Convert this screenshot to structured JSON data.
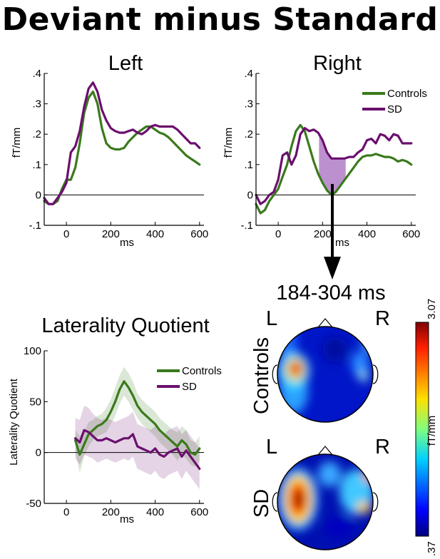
{
  "figure": {
    "title": "Deviant minus Standard",
    "colors": {
      "controls": "#3a7a1c",
      "sd": "#6b0f6e",
      "shade": "#b07cc6",
      "axis": "#000000"
    }
  },
  "chart_data": [
    {
      "type": "line",
      "title": "Left",
      "xlabel": "ms",
      "ylabel": "fT/mm",
      "xlim": [
        -100,
        620
      ],
      "ylim": [
        -0.1,
        0.4
      ],
      "xticks": [
        0,
        200,
        400,
        600
      ],
      "xtick_labels": [
        "0",
        "200",
        "400",
        "600"
      ],
      "yticks": [
        -0.1,
        0,
        0.1,
        0.2,
        0.3,
        0.4
      ],
      "ytick_labels": [
        "-.1",
        "0",
        ".1",
        ".2",
        ".3",
        ".4"
      ],
      "series": [
        {
          "name": "Controls",
          "color": "#3a7a1c",
          "x": [
            -100,
            -80,
            -60,
            -40,
            -20,
            0,
            20,
            40,
            60,
            80,
            100,
            120,
            140,
            160,
            180,
            200,
            220,
            240,
            260,
            280,
            300,
            320,
            340,
            360,
            380,
            400,
            420,
            440,
            460,
            480,
            500,
            520,
            540,
            560,
            580,
            600
          ],
          "y": [
            -0.02,
            -0.03,
            -0.03,
            -0.02,
            0.02,
            0.05,
            0.05,
            0.09,
            0.17,
            0.27,
            0.32,
            0.34,
            0.3,
            0.22,
            0.17,
            0.155,
            0.15,
            0.15,
            0.155,
            0.175,
            0.19,
            0.205,
            0.215,
            0.225,
            0.225,
            0.215,
            0.205,
            0.2,
            0.19,
            0.175,
            0.16,
            0.145,
            0.13,
            0.12,
            0.11,
            0.1
          ]
        },
        {
          "name": "SD",
          "color": "#6b0f6e",
          "x": [
            -100,
            -80,
            -60,
            -40,
            -20,
            0,
            20,
            40,
            60,
            80,
            100,
            120,
            140,
            160,
            180,
            200,
            220,
            240,
            260,
            280,
            300,
            320,
            340,
            360,
            380,
            400,
            420,
            440,
            460,
            480,
            500,
            520,
            540,
            560,
            580,
            600
          ],
          "y": [
            -0.01,
            -0.03,
            -0.03,
            -0.01,
            0.01,
            0.04,
            0.14,
            0.16,
            0.21,
            0.29,
            0.35,
            0.37,
            0.34,
            0.28,
            0.245,
            0.22,
            0.21,
            0.205,
            0.205,
            0.21,
            0.215,
            0.205,
            0.2,
            0.21,
            0.225,
            0.23,
            0.225,
            0.225,
            0.225,
            0.225,
            0.215,
            0.2,
            0.185,
            0.17,
            0.17,
            0.155
          ]
        }
      ]
    },
    {
      "type": "line",
      "title": "Right",
      "xlabel": "ms",
      "ylabel": "fT/mm",
      "xlim": [
        -100,
        620
      ],
      "ylim": [
        -0.1,
        0.4
      ],
      "xticks": [
        0,
        200,
        400,
        600
      ],
      "xtick_labels": [
        "0",
        "200",
        "400",
        "600"
      ],
      "yticks": [
        -0.1,
        0,
        0.1,
        0.2,
        0.3,
        0.4
      ],
      "ytick_labels": [
        "-.1",
        "0",
        ".1",
        ".2",
        ".3",
        ".4"
      ],
      "shaded_window": [
        184,
        304
      ],
      "legend": "top-right",
      "series": [
        {
          "name": "Controls",
          "color": "#3a7a1c",
          "x": [
            -100,
            -80,
            -60,
            -40,
            -20,
            0,
            20,
            40,
            60,
            80,
            100,
            120,
            140,
            160,
            180,
            200,
            220,
            240,
            260,
            280,
            300,
            320,
            340,
            360,
            380,
            400,
            420,
            440,
            460,
            480,
            500,
            520,
            540,
            560,
            580,
            600
          ],
          "y": [
            -0.03,
            -0.06,
            -0.05,
            -0.02,
            0.0,
            0.02,
            0.06,
            0.1,
            0.16,
            0.21,
            0.23,
            0.21,
            0.16,
            0.11,
            0.07,
            0.04,
            0.015,
            0.0,
            0.01,
            0.03,
            0.05,
            0.07,
            0.09,
            0.11,
            0.125,
            0.13,
            0.13,
            0.135,
            0.13,
            0.125,
            0.125,
            0.12,
            0.11,
            0.115,
            0.11,
            0.1
          ]
        },
        {
          "name": "SD",
          "color": "#6b0f6e",
          "x": [
            -100,
            -80,
            -60,
            -40,
            -20,
            0,
            20,
            40,
            60,
            80,
            100,
            120,
            140,
            160,
            180,
            200,
            220,
            240,
            260,
            280,
            300,
            320,
            340,
            360,
            380,
            400,
            420,
            440,
            460,
            480,
            500,
            520,
            540,
            560,
            580,
            600
          ],
          "y": [
            0.0,
            -0.03,
            -0.02,
            0.0,
            0.01,
            0.05,
            0.13,
            0.14,
            0.1,
            0.13,
            0.2,
            0.22,
            0.21,
            0.215,
            0.205,
            0.18,
            0.14,
            0.12,
            0.12,
            0.12,
            0.12,
            0.125,
            0.125,
            0.14,
            0.15,
            0.18,
            0.185,
            0.17,
            0.2,
            0.195,
            0.18,
            0.2,
            0.195,
            0.17,
            0.17,
            0.17
          ]
        }
      ]
    },
    {
      "type": "line",
      "title": "Laterality Quotient",
      "xlabel": "ms",
      "ylabel": "Laterality Quotient",
      "xlim": [
        -100,
        620
      ],
      "ylim": [
        -50,
        100
      ],
      "xticks": [
        0,
        200,
        400,
        600
      ],
      "xtick_labels": [
        "0",
        "200",
        "400",
        "600"
      ],
      "yticks": [
        -50,
        0,
        50,
        100
      ],
      "ytick_labels": [
        "-50",
        "0",
        "50",
        "100"
      ],
      "legend": "top-right",
      "series": [
        {
          "name": "Controls",
          "color": "#3a7a1c",
          "x": [
            40,
            60,
            80,
            100,
            120,
            140,
            160,
            180,
            200,
            220,
            240,
            260,
            280,
            300,
            320,
            340,
            360,
            380,
            400,
            420,
            440,
            460,
            480,
            500,
            520,
            540,
            560,
            580,
            600
          ],
          "y": [
            12,
            -2,
            8,
            18,
            22,
            26,
            28,
            32,
            40,
            50,
            62,
            70,
            64,
            56,
            46,
            40,
            36,
            32,
            28,
            22,
            18,
            14,
            10,
            6,
            12,
            8,
            0,
            -2,
            4
          ],
          "band_half_width": [
            10,
            18,
            12,
            12,
            10,
            10,
            10,
            12,
            12,
            14,
            14,
            14,
            14,
            14,
            12,
            12,
            12,
            12,
            12,
            12,
            12,
            12,
            12,
            14,
            14,
            14,
            12,
            12,
            12
          ]
        },
        {
          "name": "SD",
          "color": "#6b0f6e",
          "x": [
            40,
            60,
            80,
            100,
            120,
            140,
            160,
            180,
            200,
            220,
            240,
            260,
            280,
            300,
            320,
            340,
            360,
            380,
            400,
            420,
            440,
            460,
            480,
            500,
            520,
            540,
            560,
            580,
            600
          ],
          "y": [
            14,
            10,
            22,
            20,
            16,
            12,
            12,
            14,
            12,
            10,
            12,
            14,
            14,
            18,
            6,
            4,
            2,
            0,
            4,
            -2,
            -4,
            0,
            2,
            4,
            -4,
            2,
            -4,
            -10,
            -16
          ],
          "band_half_width": [
            20,
            22,
            24,
            24,
            22,
            22,
            20,
            20,
            20,
            20,
            20,
            20,
            22,
            22,
            22,
            22,
            22,
            22,
            22,
            22,
            22,
            22,
            22,
            22,
            22,
            20,
            20,
            20,
            20
          ]
        }
      ]
    }
  ],
  "topomap": {
    "title": "184-304 ms",
    "left_label": "L",
    "right_label": "R",
    "row_labels": [
      "Controls",
      "SD"
    ],
    "colorbar": {
      "label": "fT/mm",
      "max_label": "3.07",
      "min_label": ".37",
      "max": 3.07,
      "min": 0.37
    }
  }
}
